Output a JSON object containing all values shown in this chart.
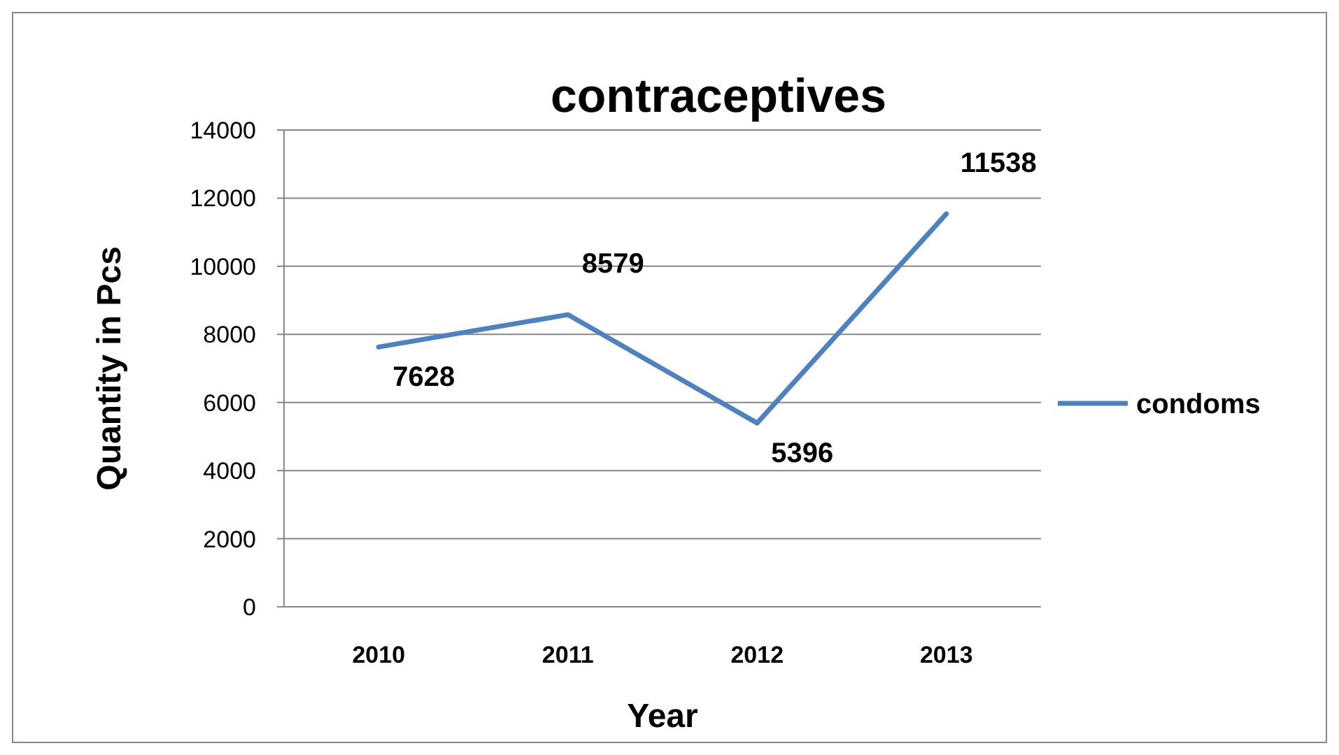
{
  "chart_data": {
    "type": "line",
    "title": "contraceptives",
    "xlabel": "Year",
    "ylabel": "Quantity in Pcs",
    "categories": [
      "2010",
      "2011",
      "2012",
      "2013"
    ],
    "series": [
      {
        "name": "condoms",
        "color": "#4f81bd",
        "values": [
          7628,
          8579,
          5396,
          11538
        ]
      }
    ],
    "ylim": [
      0,
      14000
    ],
    "yticks": [
      0,
      2000,
      4000,
      6000,
      8000,
      10000,
      12000,
      14000
    ],
    "grid": "y",
    "legend": "right",
    "data_labels": true,
    "marker": "none",
    "line_style": "solid"
  }
}
